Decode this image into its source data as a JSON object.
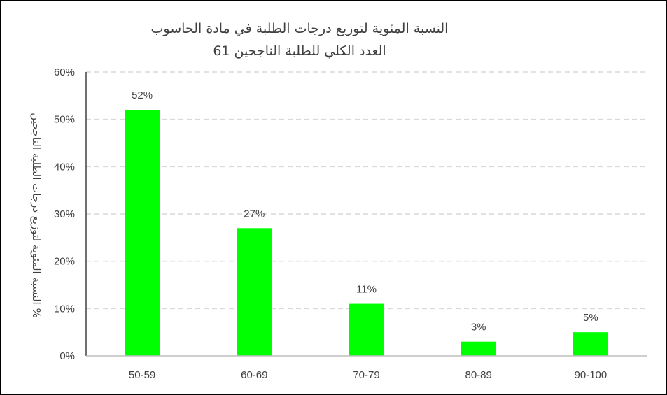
{
  "chart_data": {
    "type": "bar",
    "title": "النسبة المئوية لتوزيع درجات الطلبة في مادة الحاسوب",
    "subtitle": "العدد الكلي للطلبة الناجحين 61",
    "categories": [
      "50-59",
      "60-69",
      "70-79",
      "80-89",
      "90-100"
    ],
    "values": [
      52,
      27,
      11,
      3,
      5
    ],
    "data_labels": [
      "52%",
      "27%",
      "11%",
      "3%",
      "5%"
    ],
    "ylabel": "% النسبة المئوية لتوزيع درجات الطلبة الناجحين",
    "xlabel": "",
    "ylim": [
      0,
      60
    ],
    "yticks": [
      0,
      10,
      20,
      30,
      40,
      50,
      60
    ],
    "ytick_labels": [
      "0%",
      "10%",
      "20%",
      "30%",
      "40%",
      "50%",
      "60%"
    ],
    "grid": true,
    "bar_color": "#00ff00",
    "grid_color": "#d9d9d9",
    "axis_color": "#404040"
  }
}
